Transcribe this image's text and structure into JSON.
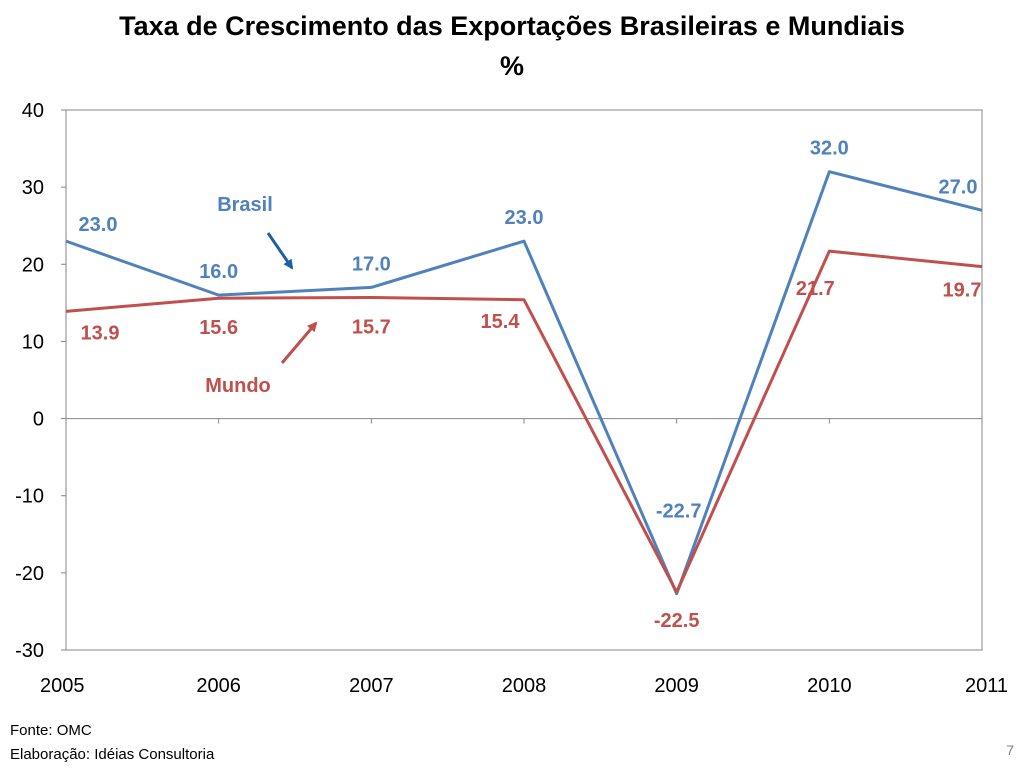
{
  "title_line1": "Taxa de Crescimento das Exportações Brasileiras e Mundiais",
  "title_line2": "%",
  "footer": {
    "source": "Fonte: OMC",
    "elaboration": "Elaboração: Idéias Consultoria"
  },
  "page_number": "7",
  "chart_data": {
    "type": "line",
    "x": [
      "2005",
      "2006",
      "2007",
      "2008",
      "2009",
      "2010",
      "2011"
    ],
    "ylim": [
      -30,
      40
    ],
    "yticks": [
      -30,
      -20,
      -10,
      0,
      10,
      20,
      30,
      40
    ],
    "grid": false,
    "series": [
      {
        "name": "Brasil",
        "color": "#4F81BD",
        "values": [
          23.0,
          16.0,
          17.0,
          23.0,
          -22.7,
          32.0,
          27.0
        ],
        "labels": [
          "23.0",
          "16.0",
          "17.0",
          "23.0",
          "-22.7",
          "32.0",
          "27.0"
        ]
      },
      {
        "name": "Mundo",
        "color": "#C0504D",
        "values": [
          13.9,
          15.6,
          15.7,
          15.4,
          -22.5,
          21.7,
          19.7
        ],
        "labels": [
          "13.9",
          "15.6",
          "15.7",
          "15.4",
          "-22.5",
          "21.7",
          "19.7"
        ]
      }
    ]
  }
}
